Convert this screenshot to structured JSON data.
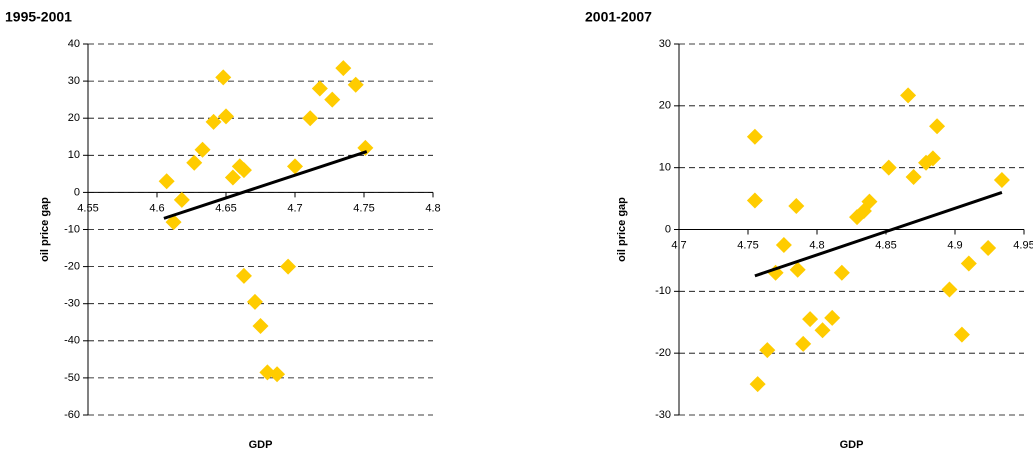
{
  "chart_data": [
    {
      "type": "scatter",
      "title": "1995-2001",
      "x_label": "GDP",
      "y_label": "oil price gap",
      "color": "#ffcc00",
      "x": [
        4.607,
        4.612,
        4.618,
        4.627,
        4.633,
        4.641,
        4.648,
        4.65,
        4.655,
        4.66,
        4.663,
        4.663,
        4.671,
        4.675,
        4.68,
        4.687,
        4.695,
        4.7,
        4.711,
        4.718,
        4.727,
        4.735,
        4.744,
        4.751
      ],
      "values": [
        3,
        -8,
        -2,
        8,
        11.5,
        19,
        31,
        20.5,
        4,
        7,
        6,
        -22.5,
        -29.5,
        -36,
        -48.5,
        -49,
        -20,
        7,
        20,
        28,
        25,
        33.5,
        29,
        12
      ],
      "trendline": {
        "x": [
          4.605,
          4.752
        ],
        "values": [
          -7,
          11
        ],
        "color": "#000000"
      },
      "xlim": [
        4.55,
        4.8
      ],
      "xticks": [
        4.55,
        4.6,
        4.65,
        4.7,
        4.75,
        4.8
      ],
      "ylim": [
        -60,
        40
      ],
      "yticks": [
        -60,
        -50,
        -40,
        -30,
        -20,
        -10,
        0,
        10,
        20,
        30,
        40
      ],
      "grid": true
    },
    {
      "type": "scatter",
      "title": "2001-2007",
      "x_label": "GDP",
      "y_label": "oil price gap",
      "color": "#ffcc00",
      "x": [
        4.755,
        4.755,
        4.757,
        4.764,
        4.77,
        4.776,
        4.785,
        4.786,
        4.79,
        4.795,
        4.804,
        4.811,
        4.818,
        4.829,
        4.834,
        4.838,
        4.852,
        4.866,
        4.87,
        4.879,
        4.884,
        4.887,
        4.896,
        4.905,
        4.91,
        4.924,
        4.934
      ],
      "values": [
        15,
        4.7,
        -25,
        -19.5,
        -7,
        -2.5,
        3.8,
        -6.5,
        -18.5,
        -14.5,
        -16.3,
        -14.3,
        -7,
        2,
        3,
        4.5,
        10,
        21.7,
        8.5,
        10.8,
        11.5,
        16.7,
        -9.7,
        -17,
        -5.5,
        -3,
        8
      ],
      "trendline": {
        "x": [
          4.755,
          4.934
        ],
        "values": [
          -7.5,
          6
        ],
        "color": "#000000"
      },
      "xlim": [
        4.7,
        4.95
      ],
      "xticks": [
        4.7,
        4.75,
        4.8,
        4.85,
        4.9,
        4.95
      ],
      "ylim": [
        -30,
        30
      ],
      "yticks": [
        -30,
        -20,
        -10,
        0,
        10,
        20,
        30
      ],
      "grid": true
    }
  ]
}
